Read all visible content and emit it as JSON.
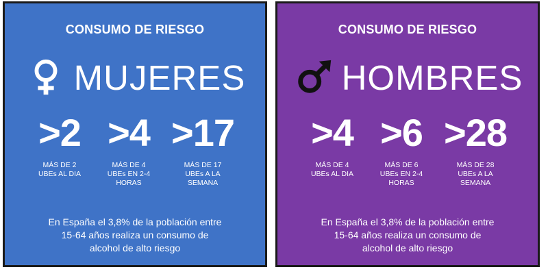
{
  "colors": {
    "women_bg": "#3f73c7",
    "men_bg": "#7a3aa5",
    "text": "#ffffff",
    "border": "#1a1a1a",
    "men_icon": "#111111"
  },
  "women": {
    "kicker": "CONSUMO DE RIESGO",
    "icon": "female-symbol-icon",
    "title": "MUJERES",
    "stats": [
      {
        "value": ">2",
        "desc": "MÁS DE 2\nUBEs AL DIA"
      },
      {
        "value": ">4",
        "desc": "MÁS DE 4\nUBEs EN 2-4\nHORAS"
      },
      {
        "value": ">17",
        "desc": "MÁS DE 17\nUBEs A LA\nSEMANA"
      }
    ],
    "summary": "En España el 3,8% de la población entre\n15-64 años realiza un consumo de\nalcohol de alto riesgo"
  },
  "men": {
    "kicker": "CONSUMO DE RIESGO",
    "icon": "male-symbol-icon",
    "title": "HOMBRES",
    "stats": [
      {
        "value": ">4",
        "desc": "MÁS DE 4\nUBEs AL DIA"
      },
      {
        "value": ">6",
        "desc": "MÁS DE 6\nUBEs EN 2-4\nHORAS"
      },
      {
        "value": ">28",
        "desc": "MÁS DE 28\nUBEs A LA\nSEMANA"
      }
    ],
    "summary": "En España el 3,8% de la población entre\n15-64 años realiza un consumo de\nalcohol de alto riesgo"
  }
}
